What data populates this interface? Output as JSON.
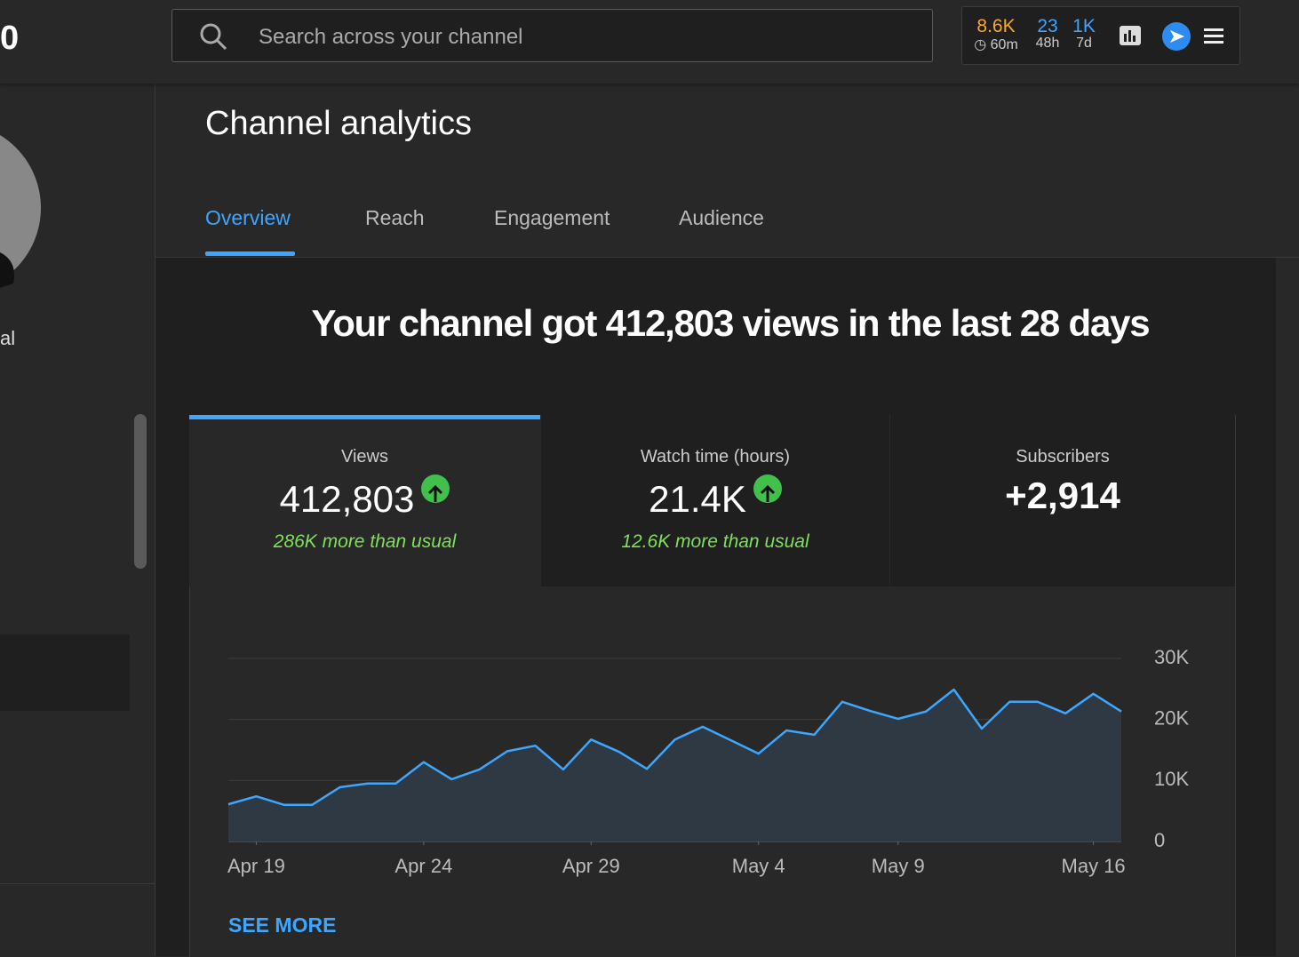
{
  "header": {
    "logo_text": "0",
    "search_placeholder": "Search across your channel",
    "stats": [
      {
        "value": "8.6K",
        "label": "60m"
      },
      {
        "value": "23",
        "label": "48h"
      },
      {
        "value": "1K",
        "label": "7d"
      }
    ]
  },
  "sidebar": {
    "channel_label": "al"
  },
  "page_title": "Channel analytics",
  "tabs": [
    "Overview",
    "Reach",
    "Engagement",
    "Audience"
  ],
  "headline": "Your channel got 412,803 views in the last 28 days",
  "metrics": [
    {
      "label": "Views",
      "value": "412,803",
      "note": "286K more than usual"
    },
    {
      "label": "Watch time (hours)",
      "value": "21.4K",
      "note": "12.6K more than usual"
    },
    {
      "label": "Subscribers",
      "value": "+2,914"
    }
  ],
  "chart_data": {
    "type": "line",
    "color": "#3ea6ff",
    "categories": [
      null,
      "Apr 19",
      null,
      null,
      null,
      null,
      null,
      "Apr 24",
      null,
      null,
      null,
      null,
      null,
      "Apr 29",
      null,
      null,
      null,
      null,
      null,
      "May 4",
      null,
      null,
      null,
      null,
      "May 9",
      null,
      null,
      null,
      null,
      null,
      null,
      "May 16",
      null
    ],
    "values": [
      6100,
      7400,
      6000,
      6000,
      8900,
      9500,
      9500,
      13000,
      10200,
      11800,
      14800,
      15700,
      11800,
      16700,
      14700,
      11900,
      16700,
      18800,
      16600,
      14400,
      18200,
      17500,
      22900,
      21400,
      20100,
      21300,
      24900,
      18500,
      22900,
      22900,
      21000,
      24200,
      21300
    ],
    "ylim": [
      0,
      30000
    ],
    "yticks": [
      0,
      {
        "value": 10000,
        "label": "10K"
      },
      {
        "value": 20000,
        "label": "20K"
      },
      {
        "value": 30000,
        "label": "30K"
      }
    ],
    "grid": true
  },
  "see_more": "SEE MORE"
}
